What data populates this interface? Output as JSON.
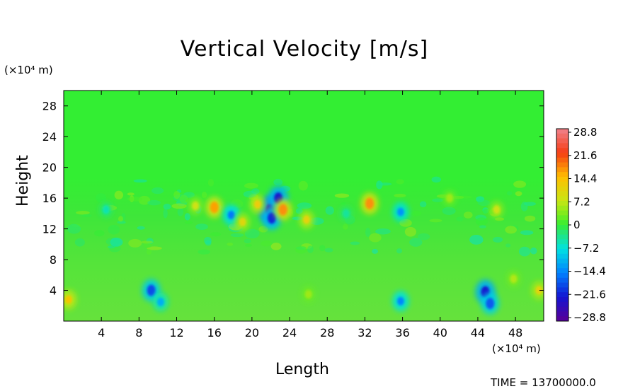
{
  "chart_data": {
    "type": "heatmap",
    "title": "Vertical Velocity [m/s]",
    "xlabel": "Length",
    "ylabel": "Height",
    "x_unit": "(×10⁴ m)",
    "y_unit": "(×10⁴ m)",
    "xlim": [
      0,
      51
    ],
    "ylim": [
      0,
      30
    ],
    "x_ticks": [
      "4",
      "8",
      "12",
      "16",
      "20",
      "24",
      "28",
      "32",
      "36",
      "40",
      "44",
      "48"
    ],
    "y_ticks": [
      "4",
      "8",
      "12",
      "16",
      "20",
      "24",
      "28"
    ],
    "colorbar": {
      "labels": [
        "28.8",
        "21.6",
        "14.4",
        "7.2",
        "0",
        "−7.2",
        "−14.4",
        "−21.6",
        "−28.8"
      ],
      "range": [
        -28.8,
        28.8
      ]
    },
    "features": [
      {
        "x": 0.5,
        "y": 2.8,
        "value": 13
      },
      {
        "x": 9.3,
        "y": 4.0,
        "value": -18
      },
      {
        "x": 10.3,
        "y": 2.5,
        "value": -11
      },
      {
        "x": 35.8,
        "y": 2.6,
        "value": -14
      },
      {
        "x": 44.8,
        "y": 3.8,
        "value": -22
      },
      {
        "x": 45.3,
        "y": 2.3,
        "value": -17
      },
      {
        "x": 50.5,
        "y": 4.0,
        "value": 11
      },
      {
        "x": 21.9,
        "y": 14.5,
        "value": -28
      },
      {
        "x": 22.8,
        "y": 16.0,
        "value": -22
      },
      {
        "x": 22.1,
        "y": 13.4,
        "value": -20
      },
      {
        "x": 23.3,
        "y": 14.5,
        "value": 17
      },
      {
        "x": 20.6,
        "y": 15.2,
        "value": 12
      },
      {
        "x": 16.0,
        "y": 14.8,
        "value": 16
      },
      {
        "x": 17.8,
        "y": 13.8,
        "value": -15
      },
      {
        "x": 32.5,
        "y": 15.3,
        "value": 17
      },
      {
        "x": 35.8,
        "y": 14.2,
        "value": -13
      },
      {
        "x": 14.0,
        "y": 15.0,
        "value": 8
      },
      {
        "x": 19.0,
        "y": 12.9,
        "value": 10
      },
      {
        "x": 25.8,
        "y": 13.2,
        "value": 11
      },
      {
        "x": 46.0,
        "y": 14.5,
        "value": 8
      },
      {
        "x": 47.8,
        "y": 5.5,
        "value": 6
      },
      {
        "x": 26.0,
        "y": 3.5,
        "value": 5
      },
      {
        "x": 4.5,
        "y": 14.5,
        "value": -5
      },
      {
        "x": 30.0,
        "y": 14.0,
        "value": -4
      },
      {
        "x": 41.0,
        "y": 16.0,
        "value": 5
      }
    ],
    "grid": false
  },
  "footer": {
    "time": "TIME = 13700000.0"
  }
}
